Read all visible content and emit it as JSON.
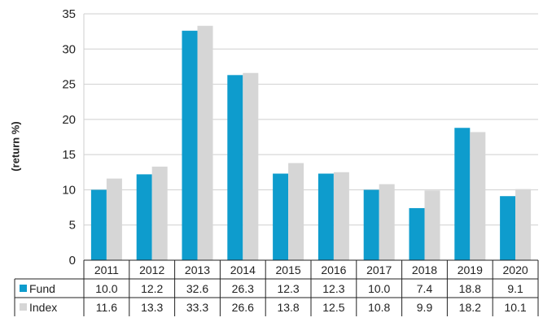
{
  "chart_data": {
    "type": "bar",
    "ylabel": "(return %)",
    "ylim": [
      0,
      35
    ],
    "yticks": [
      0,
      5,
      10,
      15,
      20,
      25,
      30,
      35
    ],
    "grid": true,
    "categories": [
      "2011",
      "2012",
      "2013",
      "2014",
      "2015",
      "2016",
      "2017",
      "2018",
      "2019",
      "2020"
    ],
    "series": [
      {
        "name": "Fund",
        "color": "#0e9ccd",
        "values": [
          10.0,
          12.2,
          32.6,
          26.3,
          12.3,
          12.3,
          10.0,
          7.4,
          18.8,
          9.1
        ],
        "labels": [
          "10.0",
          "12.2",
          "32.6",
          "26.3",
          "12.3",
          "12.3",
          "10.0",
          "7.4",
          "18.8",
          "9.1"
        ]
      },
      {
        "name": "Index",
        "color": "#d6d6d6",
        "values": [
          11.6,
          13.3,
          33.3,
          26.6,
          13.8,
          12.5,
          10.8,
          9.9,
          18.2,
          10.1
        ],
        "labels": [
          "11.6",
          "13.3",
          "33.3",
          "26.6",
          "13.8",
          "12.5",
          "10.8",
          "9.9",
          "18.2",
          "10.1"
        ]
      }
    ]
  }
}
